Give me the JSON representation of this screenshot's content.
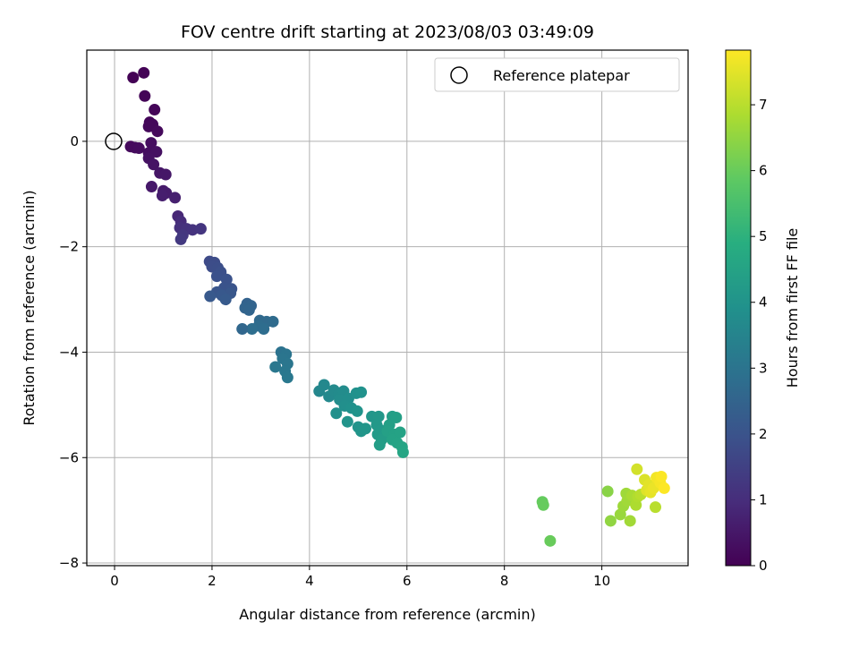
{
  "chart_data": {
    "type": "scatter",
    "title": "FOV centre drift starting at 2023/08/03 03:49:09",
    "xlabel": "Angular distance from reference (arcmin)",
    "ylabel": "Rotation from reference (arcmin)",
    "colorbar_label": "Hours from first FF file",
    "xlim": [
      -0.57,
      11.77
    ],
    "ylim": [
      -8.05,
      1.73
    ],
    "clim": [
      0,
      7.83
    ],
    "colormap": "viridis",
    "grid": true,
    "legend_position": "upper right",
    "x_ticks": [
      0,
      2,
      4,
      6,
      8,
      10
    ],
    "x_tick_labels": [
      "0",
      "2",
      "4",
      "6",
      "8",
      "10"
    ],
    "y_ticks": [
      0,
      -2,
      -4,
      -6,
      -8
    ],
    "y_tick_labels": [
      "0",
      "−2",
      "−4",
      "−6",
      "−8"
    ],
    "colorbar_ticks": [
      0,
      1,
      2,
      3,
      4,
      5,
      6,
      7
    ],
    "colorbar_tick_labels": [
      "0",
      "1",
      "2",
      "3",
      "4",
      "5",
      "6",
      "7"
    ],
    "reference": {
      "label": "Reference platepar",
      "x": 0,
      "y": 0
    },
    "points": [
      {
        "x": 0.38,
        "y": 1.21,
        "t": 0.03
      },
      {
        "x": 0.6,
        "y": 1.3,
        "t": 0.05
      },
      {
        "x": 0.62,
        "y": 0.86,
        "t": 0.08
      },
      {
        "x": 0.82,
        "y": 0.6,
        "t": 0.1
      },
      {
        "x": 0.72,
        "y": 0.36,
        "t": 0.12
      },
      {
        "x": 0.78,
        "y": 0.32,
        "t": 0.14
      },
      {
        "x": 0.7,
        "y": 0.28,
        "t": 0.16
      },
      {
        "x": 0.88,
        "y": 0.19,
        "t": 0.18
      },
      {
        "x": 0.33,
        "y": -0.1,
        "t": 0.2
      },
      {
        "x": 0.42,
        "y": -0.12,
        "t": 0.22
      },
      {
        "x": 0.5,
        "y": -0.13,
        "t": 0.25
      },
      {
        "x": 0.75,
        "y": -0.03,
        "t": 0.28
      },
      {
        "x": 0.7,
        "y": -0.22,
        "t": 0.3
      },
      {
        "x": 0.86,
        "y": -0.2,
        "t": 0.33
      },
      {
        "x": 0.7,
        "y": -0.32,
        "t": 0.36
      },
      {
        "x": 0.8,
        "y": -0.44,
        "t": 0.4
      },
      {
        "x": 0.93,
        "y": -0.6,
        "t": 0.44
      },
      {
        "x": 1.05,
        "y": -0.63,
        "t": 0.48
      },
      {
        "x": 0.76,
        "y": -0.86,
        "t": 0.52
      },
      {
        "x": 1.0,
        "y": -0.94,
        "t": 0.56
      },
      {
        "x": 1.06,
        "y": -0.98,
        "t": 0.6
      },
      {
        "x": 0.98,
        "y": -1.03,
        "t": 0.64
      },
      {
        "x": 1.24,
        "y": -1.07,
        "t": 0.68
      },
      {
        "x": 1.3,
        "y": -1.42,
        "t": 0.85
      },
      {
        "x": 1.36,
        "y": -1.52,
        "t": 0.95
      },
      {
        "x": 1.34,
        "y": -1.64,
        "t": 1.05
      },
      {
        "x": 1.48,
        "y": -1.66,
        "t": 1.1
      },
      {
        "x": 1.6,
        "y": -1.68,
        "t": 1.15
      },
      {
        "x": 1.77,
        "y": -1.66,
        "t": 1.2
      },
      {
        "x": 1.4,
        "y": -1.78,
        "t": 1.25
      },
      {
        "x": 1.36,
        "y": -1.86,
        "t": 1.3
      },
      {
        "x": 1.95,
        "y": -2.28,
        "t": 1.75
      },
      {
        "x": 2.05,
        "y": -2.3,
        "t": 1.8
      },
      {
        "x": 2.0,
        "y": -2.38,
        "t": 1.83
      },
      {
        "x": 2.12,
        "y": -2.4,
        "t": 1.86
      },
      {
        "x": 2.18,
        "y": -2.48,
        "t": 1.9
      },
      {
        "x": 2.1,
        "y": -2.56,
        "t": 1.93
      },
      {
        "x": 2.3,
        "y": -2.62,
        "t": 1.97
      },
      {
        "x": 2.25,
        "y": -2.78,
        "t": 2.0
      },
      {
        "x": 2.4,
        "y": -2.8,
        "t": 2.03
      },
      {
        "x": 2.1,
        "y": -2.86,
        "t": 2.06
      },
      {
        "x": 2.38,
        "y": -2.88,
        "t": 2.1
      },
      {
        "x": 2.2,
        "y": -2.92,
        "t": 2.13
      },
      {
        "x": 1.96,
        "y": -2.94,
        "t": 2.16
      },
      {
        "x": 2.28,
        "y": -3.0,
        "t": 2.2
      },
      {
        "x": 2.72,
        "y": -3.08,
        "t": 2.45
      },
      {
        "x": 2.8,
        "y": -3.12,
        "t": 2.5
      },
      {
        "x": 2.68,
        "y": -3.16,
        "t": 2.52
      },
      {
        "x": 2.76,
        "y": -3.2,
        "t": 2.55
      },
      {
        "x": 2.98,
        "y": -3.4,
        "t": 2.65
      },
      {
        "x": 3.12,
        "y": -3.42,
        "t": 2.7
      },
      {
        "x": 3.25,
        "y": -3.42,
        "t": 2.72
      },
      {
        "x": 2.96,
        "y": -3.5,
        "t": 2.75
      },
      {
        "x": 3.06,
        "y": -3.56,
        "t": 2.78
      },
      {
        "x": 2.82,
        "y": -3.56,
        "t": 2.8
      },
      {
        "x": 2.62,
        "y": -3.56,
        "t": 2.6
      },
      {
        "x": 3.42,
        "y": -4.0,
        "t": 2.95
      },
      {
        "x": 3.52,
        "y": -4.04,
        "t": 3.0
      },
      {
        "x": 3.45,
        "y": -4.12,
        "t": 3.02
      },
      {
        "x": 3.55,
        "y": -4.22,
        "t": 3.05
      },
      {
        "x": 3.3,
        "y": -4.28,
        "t": 3.08
      },
      {
        "x": 3.5,
        "y": -4.36,
        "t": 3.1
      },
      {
        "x": 3.55,
        "y": -4.48,
        "t": 3.12
      },
      {
        "x": 4.2,
        "y": -4.74,
        "t": 3.6
      },
      {
        "x": 4.3,
        "y": -4.62,
        "t": 3.62
      },
      {
        "x": 4.4,
        "y": -4.84,
        "t": 3.65
      },
      {
        "x": 4.5,
        "y": -4.72,
        "t": 3.68
      },
      {
        "x": 4.6,
        "y": -4.8,
        "t": 3.72
      },
      {
        "x": 4.7,
        "y": -4.74,
        "t": 3.75
      },
      {
        "x": 4.62,
        "y": -4.9,
        "t": 3.78
      },
      {
        "x": 4.8,
        "y": -4.88,
        "t": 3.82
      },
      {
        "x": 4.72,
        "y": -5.02,
        "t": 3.85
      },
      {
        "x": 4.55,
        "y": -5.16,
        "t": 3.88
      },
      {
        "x": 4.86,
        "y": -5.06,
        "t": 3.9
      },
      {
        "x": 4.96,
        "y": -4.78,
        "t": 3.92
      },
      {
        "x": 5.06,
        "y": -4.76,
        "t": 3.95
      },
      {
        "x": 4.98,
        "y": -5.12,
        "t": 3.98
      },
      {
        "x": 4.78,
        "y": -5.32,
        "t": 4.0
      },
      {
        "x": 5.0,
        "y": -5.42,
        "t": 4.02
      },
      {
        "x": 5.06,
        "y": -5.5,
        "t": 4.05
      },
      {
        "x": 5.15,
        "y": -5.45,
        "t": 4.08
      },
      {
        "x": 5.28,
        "y": -5.22,
        "t": 4.1
      },
      {
        "x": 5.42,
        "y": -5.22,
        "t": 4.13
      },
      {
        "x": 5.38,
        "y": -5.38,
        "t": 4.16
      },
      {
        "x": 5.46,
        "y": -5.48,
        "t": 4.2
      },
      {
        "x": 5.4,
        "y": -5.56,
        "t": 4.23
      },
      {
        "x": 5.55,
        "y": -5.58,
        "t": 4.26
      },
      {
        "x": 5.48,
        "y": -5.66,
        "t": 4.3
      },
      {
        "x": 5.44,
        "y": -5.76,
        "t": 4.33
      },
      {
        "x": 5.7,
        "y": -5.22,
        "t": 4.36
      },
      {
        "x": 5.78,
        "y": -5.24,
        "t": 4.38
      },
      {
        "x": 5.64,
        "y": -5.38,
        "t": 4.4
      },
      {
        "x": 5.6,
        "y": -5.5,
        "t": 4.42
      },
      {
        "x": 5.74,
        "y": -5.56,
        "t": 4.45
      },
      {
        "x": 5.86,
        "y": -5.52,
        "t": 4.48
      },
      {
        "x": 5.7,
        "y": -5.66,
        "t": 4.5
      },
      {
        "x": 5.8,
        "y": -5.72,
        "t": 4.52
      },
      {
        "x": 5.9,
        "y": -5.8,
        "t": 4.55
      },
      {
        "x": 5.92,
        "y": -5.9,
        "t": 4.58
      },
      {
        "x": 8.78,
        "y": -6.84,
        "t": 5.95
      },
      {
        "x": 8.8,
        "y": -6.9,
        "t": 5.97
      },
      {
        "x": 8.94,
        "y": -7.58,
        "t": 6.0
      },
      {
        "x": 10.12,
        "y": -6.64,
        "t": 6.4
      },
      {
        "x": 10.18,
        "y": -7.2,
        "t": 6.5
      },
      {
        "x": 10.38,
        "y": -7.08,
        "t": 6.6
      },
      {
        "x": 10.44,
        "y": -6.92,
        "t": 6.65
      },
      {
        "x": 10.5,
        "y": -6.68,
        "t": 6.68
      },
      {
        "x": 10.52,
        "y": -6.82,
        "t": 6.7
      },
      {
        "x": 10.58,
        "y": -7.2,
        "t": 6.72
      },
      {
        "x": 10.62,
        "y": -6.72,
        "t": 6.8
      },
      {
        "x": 10.7,
        "y": -6.9,
        "t": 6.85
      },
      {
        "x": 10.74,
        "y": -6.74,
        "t": 6.9
      },
      {
        "x": 10.72,
        "y": -6.22,
        "t": 7.3
      },
      {
        "x": 10.8,
        "y": -6.7,
        "t": 7.0
      },
      {
        "x": 10.88,
        "y": -6.42,
        "t": 7.4
      },
      {
        "x": 10.92,
        "y": -6.62,
        "t": 7.45
      },
      {
        "x": 10.96,
        "y": -6.52,
        "t": 7.5
      },
      {
        "x": 11.0,
        "y": -6.66,
        "t": 7.55
      },
      {
        "x": 11.06,
        "y": -6.58,
        "t": 7.6
      },
      {
        "x": 11.1,
        "y": -6.94,
        "t": 7.0
      },
      {
        "x": 11.12,
        "y": -6.38,
        "t": 7.7
      },
      {
        "x": 11.2,
        "y": -6.48,
        "t": 7.75
      },
      {
        "x": 11.22,
        "y": -6.36,
        "t": 7.8
      },
      {
        "x": 11.28,
        "y": -6.58,
        "t": 7.82
      }
    ]
  }
}
